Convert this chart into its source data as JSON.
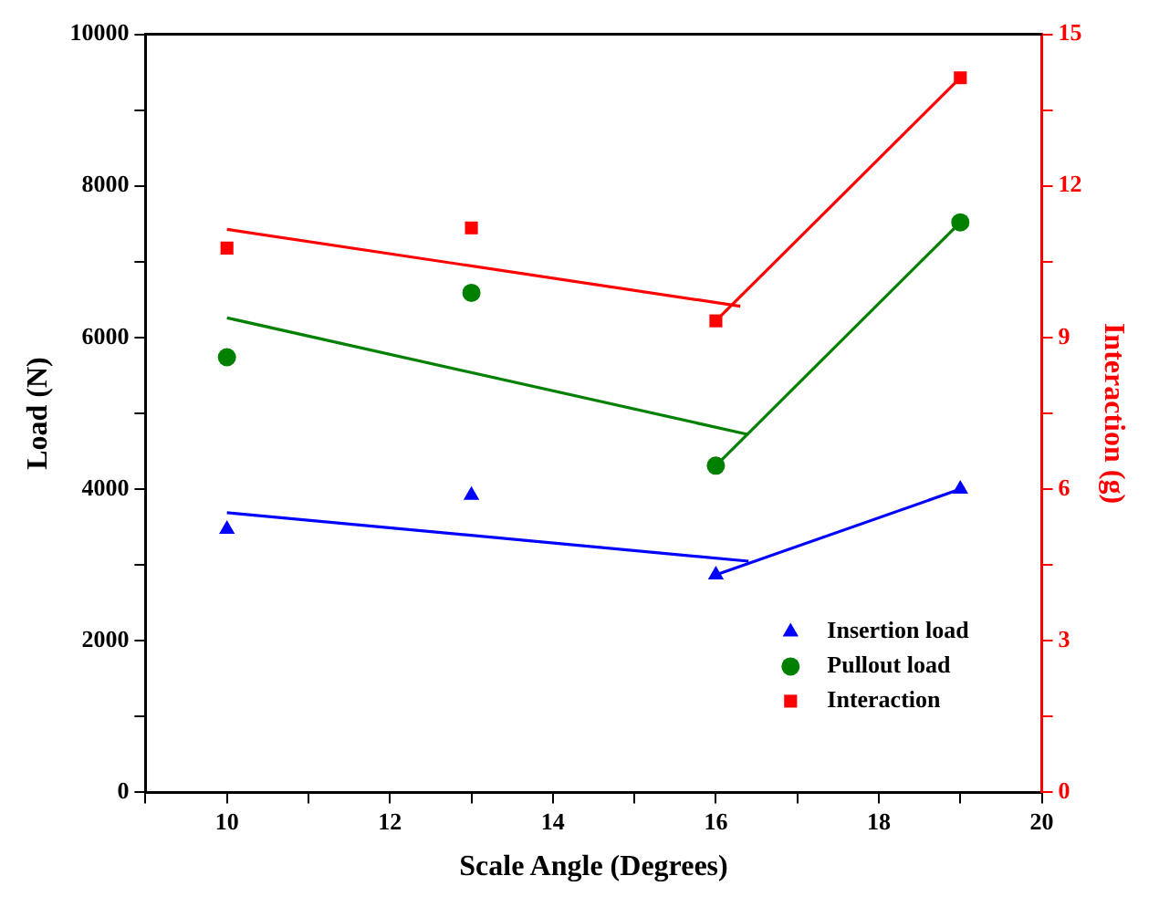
{
  "chart_data": {
    "type": "scatter",
    "xlabel": "Scale Angle (Degrees)",
    "ylabel": "Load (N)",
    "y2label": "Interaction (g)",
    "x": [
      10,
      13,
      16,
      19
    ],
    "series": [
      {
        "name": "Insertion load",
        "color": "#0000ff",
        "marker": "triangle",
        "values": [
          3470,
          3920,
          2870,
          4000
        ]
      },
      {
        "name": "Pullout load",
        "color": "#008000",
        "marker": "circle",
        "values": [
          5740,
          6590,
          4310,
          7520
        ]
      },
      {
        "name": "Interaction",
        "color": "#ff0000",
        "marker": "square",
        "axis": "y2",
        "values": [
          10.77,
          11.17,
          9.33,
          14.14
        ]
      },
      {
        "type": "line",
        "color": "#0000ff",
        "marker": "none",
        "x": [
          10,
          16.4
        ],
        "values": [
          3690,
          3050
        ]
      },
      {
        "type": "line",
        "color": "#0000ff",
        "marker": "none",
        "x": [
          16,
          19
        ],
        "values": [
          2870,
          4000
        ]
      },
      {
        "type": "line",
        "color": "#008000",
        "marker": "none",
        "x": [
          10,
          16.4
        ],
        "values": [
          6260,
          4720
        ]
      },
      {
        "type": "line",
        "color": "#008000",
        "marker": "none",
        "x": [
          16,
          19
        ],
        "values": [
          4310,
          7520
        ]
      },
      {
        "type": "line",
        "color": "#ff0000",
        "marker": "none",
        "axis": "y2",
        "x": [
          10,
          16.3
        ],
        "values": [
          11.14,
          9.62
        ]
      },
      {
        "type": "line",
        "color": "#ff0000",
        "marker": "none",
        "axis": "y2",
        "x": [
          16,
          19
        ],
        "values": [
          9.33,
          14.14
        ]
      }
    ],
    "xlim": [
      9,
      20
    ],
    "xticks": [
      {
        "value": 9,
        "label": null
      },
      10,
      {
        "value": 11,
        "label": null
      },
      12,
      {
        "value": 13,
        "label": null
      },
      14,
      {
        "value": 15,
        "label": null
      },
      16,
      {
        "value": 17,
        "label": null
      },
      18,
      {
        "value": 19,
        "label": null
      },
      20
    ],
    "ylim": [
      0,
      10000
    ],
    "yticks": [
      0,
      {
        "value": 1000,
        "label": null
      },
      2000,
      {
        "value": 3000,
        "label": null
      },
      4000,
      {
        "value": 5000,
        "label": null
      },
      6000,
      {
        "value": 7000,
        "label": null
      },
      8000,
      {
        "value": 9000,
        "label": null
      },
      10000
    ],
    "y2lim": [
      0,
      15
    ],
    "y2ticks": [
      0,
      {
        "value": 1.5,
        "label": null
      },
      3,
      {
        "value": 4.5,
        "label": null
      },
      6,
      {
        "value": 7.5,
        "label": null
      },
      9,
      {
        "value": 10.5,
        "label": null
      },
      12,
      {
        "value": 13.5,
        "label": null
      },
      15
    ],
    "grid": false,
    "legend": "bottom right",
    "line_style": "solid"
  }
}
